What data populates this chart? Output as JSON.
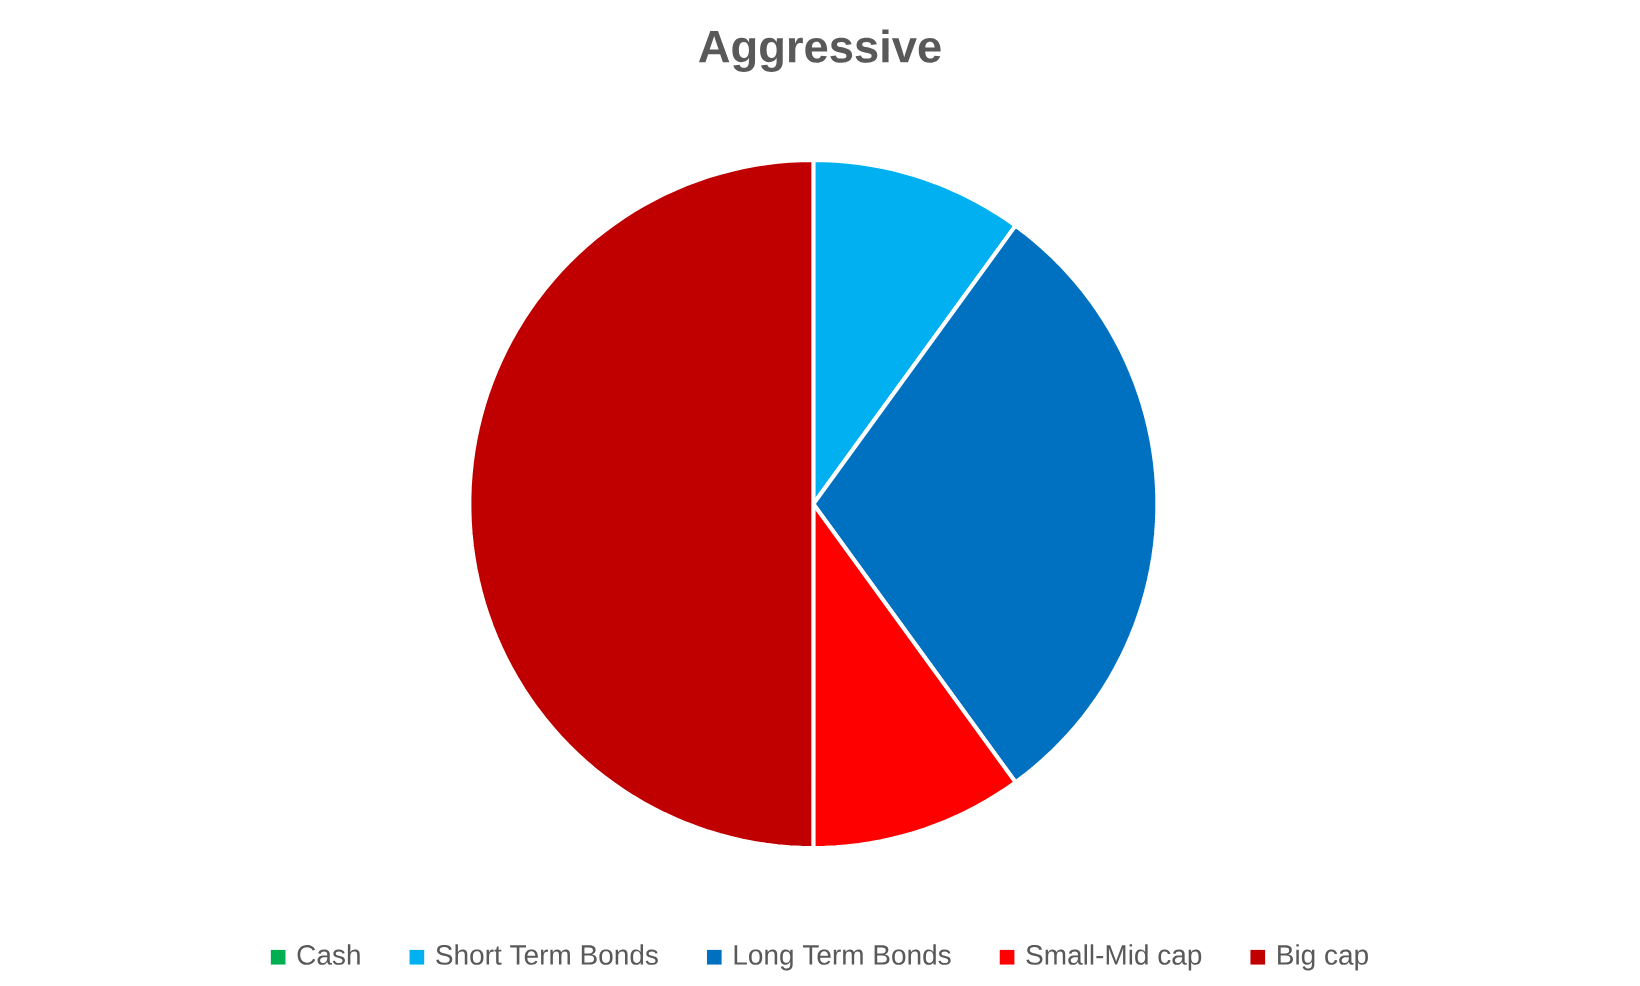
{
  "chart_data": {
    "type": "pie",
    "title": "Aggressive",
    "categories": [
      "Cash",
      "Short Term Bonds",
      "Long Term Bonds",
      "Small-Mid cap",
      "Big cap"
    ],
    "values": [
      0,
      10,
      30,
      10,
      50
    ],
    "colors": [
      "#00b050",
      "#00b0f0",
      "#0070c0",
      "#ff0000",
      "#c00000"
    ],
    "legend": "bottom"
  }
}
